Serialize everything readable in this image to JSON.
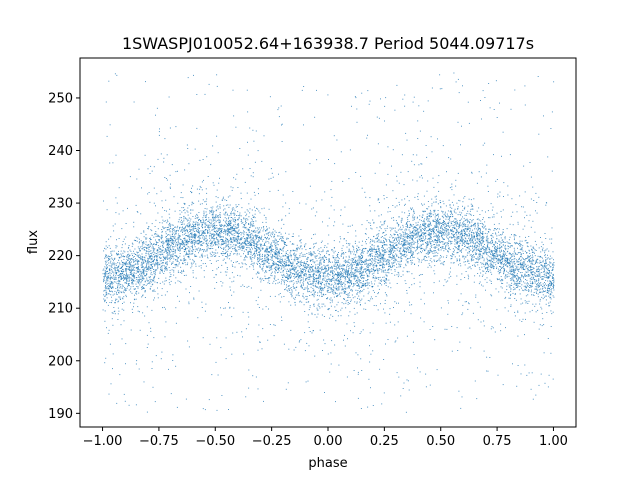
{
  "chart_data": {
    "type": "scatter",
    "title": "1SWASPJ010052.64+163938.7 Period 5044.09717s",
    "xlabel": "phase",
    "ylabel": "flux",
    "xlim": [
      -1.1,
      1.1
    ],
    "ylim": [
      187.4,
      257.6
    ],
    "xticks": [
      -1.0,
      -0.75,
      -0.5,
      -0.25,
      0.0,
      0.25,
      0.5,
      0.75,
      1.0
    ],
    "xtick_labels": [
      "−1.00",
      "−0.75",
      "−0.50",
      "−0.25",
      "0.00",
      "0.25",
      "0.50",
      "0.75",
      "1.00"
    ],
    "yticks": [
      190,
      200,
      210,
      220,
      230,
      240,
      250
    ],
    "ytick_labels": [
      "190",
      "200",
      "210",
      "220",
      "230",
      "240",
      "250"
    ],
    "grid": false,
    "legend": "none",
    "color": "#1f77b4",
    "series": [
      {
        "description": "phase-folded light curve, dense band of points",
        "x_range": [
          -1.0,
          1.0
        ],
        "y_range": [
          190,
          255
        ],
        "mean_flux": 220.3,
        "amplitude": 4.3,
        "band_half_width": 4.5,
        "minima_at_phase": [
          -1.0,
          0.0,
          1.0
        ],
        "maxima_at_phase": [
          -0.5,
          0.5
        ]
      }
    ]
  }
}
